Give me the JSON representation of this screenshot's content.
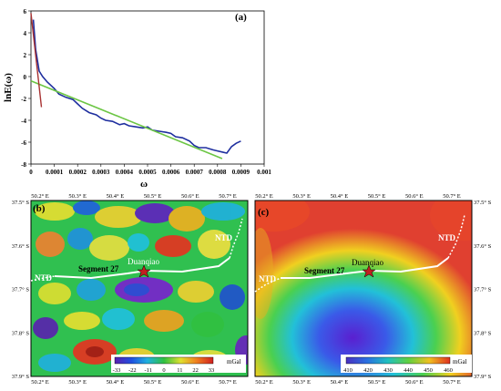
{
  "panel_a": {
    "label": "(a)",
    "ylabel": "lnE(ω)",
    "xlabel": "ω",
    "x_ticks": [
      "0",
      "0.0001",
      "0.0002",
      "0.0003",
      "0.0004",
      "0.0005",
      "0.0006",
      "0.0007",
      "0.0008",
      "0.0009",
      "0.001"
    ],
    "y_ticks": [
      "6",
      "4",
      "2",
      "0",
      "-2",
      "-4",
      "-6",
      "-8"
    ]
  },
  "panel_b": {
    "label": "(b)",
    "colorbar_ticks": [
      "-33",
      "-22",
      "-11",
      "0",
      "11",
      "22",
      "33"
    ],
    "colorbar_unit": "mGal",
    "ntd_left": "NTD",
    "ntd_right": "NTD",
    "segment": "Segment 27",
    "site": "Duanqiao"
  },
  "panel_c": {
    "label": "(c)",
    "colorbar_ticks": [
      "410",
      "420",
      "430",
      "440",
      "450",
      "460"
    ],
    "colorbar_unit": "mGal",
    "ntd_left": "NTD",
    "ntd_right": "NTD",
    "segment": "Segment 27",
    "site": "Duanqiao"
  },
  "map_axes": {
    "lon_ticks": [
      "50.2° E",
      "50.3° E",
      "50.4° E",
      "50.5° E",
      "50.6° E",
      "50.7° E"
    ],
    "lat_ticks": [
      "37.5° S",
      "37.6° S",
      "37.7° S",
      "37.8° S",
      "37.9° S"
    ]
  },
  "chart_data": {
    "type": "line",
    "xlabel": "ω",
    "ylabel": "lnE(ω)",
    "xlim": [
      0,
      0.001
    ],
    "ylim": [
      -8,
      6
    ],
    "series": [
      {
        "color": "#1f2f9f",
        "x": [
          1e-05,
          2e-05,
          3.5e-05,
          5e-05,
          7e-05,
          0.0001,
          0.00012,
          0.00015,
          0.00018,
          0.0002,
          0.00022,
          0.00025,
          0.00028,
          0.0003,
          0.00032,
          0.00035,
          0.00038,
          0.0004,
          0.00042,
          0.00045,
          0.00048,
          0.0005,
          0.00052,
          0.00055,
          0.00058,
          0.0006,
          0.00062,
          0.00065,
          0.00068,
          0.0007,
          0.00072,
          0.00075,
          0.00078,
          0.0008,
          0.00082,
          0.00084,
          0.00086,
          0.00088,
          0.0009
        ],
        "y": [
          5.2,
          2.5,
          0.5,
          0.0,
          -0.5,
          -1.1,
          -1.6,
          -1.9,
          -2.1,
          -2.5,
          -2.9,
          -3.3,
          -3.5,
          -3.8,
          -4.0,
          -4.1,
          -4.4,
          -4.3,
          -4.5,
          -4.6,
          -4.7,
          -4.6,
          -4.9,
          -5.0,
          -5.1,
          -5.2,
          -5.5,
          -5.6,
          -5.9,
          -6.3,
          -6.5,
          -6.5,
          -6.7,
          -6.8,
          -6.9,
          -7.0,
          -6.4,
          -6.1,
          -5.9
        ]
      },
      {
        "color": "#6cc644",
        "x": [
          0,
          0.00082
        ],
        "y": [
          -0.4,
          -7.5
        ]
      },
      {
        "color": "#a83232",
        "x": [
          0,
          4.5e-05
        ],
        "y": [
          5.8,
          -2.8
        ]
      }
    ]
  }
}
